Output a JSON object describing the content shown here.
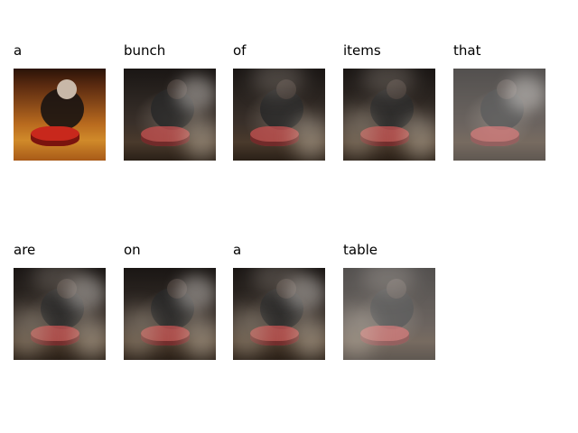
{
  "words": [
    "a",
    "bunch",
    "of",
    "items",
    "that",
    "are",
    "on",
    "a",
    "table"
  ]
}
